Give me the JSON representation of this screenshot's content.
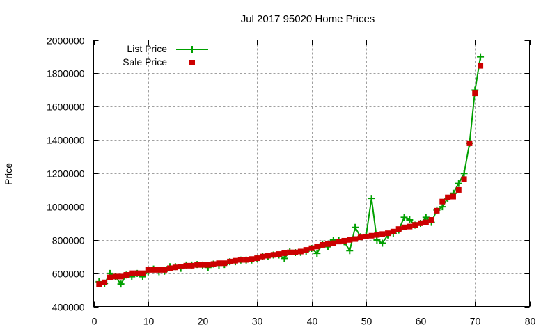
{
  "chart_data": {
    "type": "line",
    "title": "Jul 2017 95020 Home Prices",
    "xlabel": "",
    "ylabel": "Price",
    "xlim": [
      0,
      80
    ],
    "ylim": [
      400000,
      2000000
    ],
    "x_ticks": [
      "0",
      "10",
      "20",
      "30",
      "40",
      "50",
      "60",
      "70",
      "80"
    ],
    "y_ticks": [
      "400000",
      "600000",
      "800000",
      "1000000",
      "1200000",
      "1400000",
      "1600000",
      "1800000",
      "2000000"
    ],
    "grid": true,
    "legend_position": "top-left",
    "x": [
      1,
      2,
      3,
      4,
      5,
      6,
      7,
      8,
      9,
      10,
      11,
      12,
      13,
      14,
      15,
      16,
      17,
      18,
      19,
      20,
      21,
      22,
      23,
      24,
      25,
      26,
      27,
      28,
      29,
      30,
      31,
      32,
      33,
      34,
      35,
      36,
      37,
      38,
      39,
      40,
      41,
      42,
      43,
      44,
      45,
      46,
      47,
      48,
      49,
      50,
      51,
      52,
      53,
      54,
      55,
      56,
      57,
      58,
      59,
      60,
      61,
      62,
      63,
      64,
      65,
      66,
      67,
      68,
      69,
      70,
      71
    ],
    "series": [
      {
        "name": "List Price",
        "style": "linespoints",
        "marker": "plus",
        "color": "#00a000",
        "values": [
          549000,
          539000,
          599000,
          579000,
          535000,
          589000,
          579000,
          599000,
          579000,
          609000,
          625000,
          609000,
          612000,
          639000,
          639000,
          629000,
          649000,
          649000,
          652000,
          649000,
          635000,
          655000,
          648000,
          652000,
          669000,
          669000,
          679000,
          679000,
          679000,
          689000,
          699000,
          699000,
          709000,
          709000,
          689000,
          729000,
          724000,
          725000,
          732000,
          749000,
          719000,
          775000,
          759000,
          799000,
          799000,
          789000,
          735000,
          875000,
          819000,
          825000,
          1049000,
          799000,
          780000,
          829000,
          839000,
          859000,
          935000,
          920000,
          889000,
          899000,
          935000,
          905000,
          979000,
          999000,
          1049000,
          1080000,
          1139000,
          1199000,
          1380000,
          1699000,
          1899000
        ]
      },
      {
        "name": "Sale Price",
        "style": "points",
        "marker": "square",
        "color": "#cc0000",
        "values": [
          535000,
          545000,
          575000,
          580000,
          580000,
          590000,
          600000,
          600000,
          600000,
          620000,
          620000,
          620000,
          620000,
          630000,
          635000,
          640000,
          645000,
          645000,
          650000,
          650000,
          650000,
          655000,
          660000,
          660000,
          670000,
          675000,
          680000,
          680000,
          685000,
          690000,
          700000,
          705000,
          710000,
          715000,
          720000,
          725000,
          725000,
          730000,
          740000,
          750000,
          760000,
          770000,
          775000,
          780000,
          790000,
          795000,
          800000,
          805000,
          815000,
          820000,
          825000,
          830000,
          835000,
          840000,
          850000,
          865000,
          875000,
          880000,
          890000,
          900000,
          905000,
          920000,
          975000,
          1030000,
          1055000,
          1060000,
          1100000,
          1165000,
          1380000,
          1680000,
          1845000
        ]
      }
    ]
  }
}
